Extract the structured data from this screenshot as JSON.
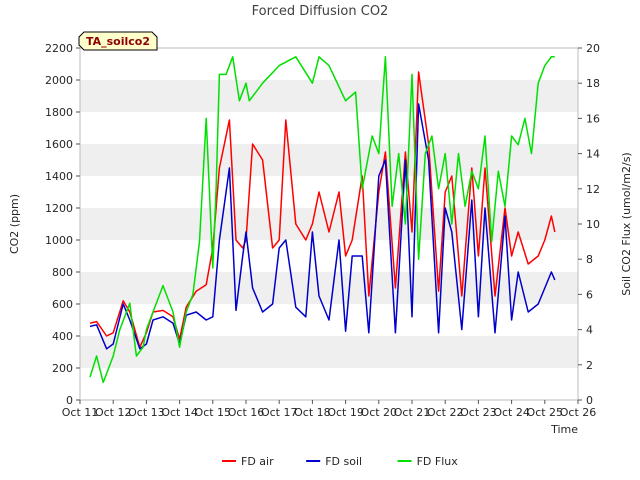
{
  "chart_data": {
    "type": "line",
    "title": "Forced Diffusion CO2",
    "site_label": "TA_soilco2",
    "xlabel": "Time",
    "ylabel_left": "CO2 (ppm)",
    "ylabel_right": "Soil CO2 Flux (umol/m2/s)",
    "x_categories": [
      "Oct 11",
      "Oct 12",
      "Oct 13",
      "Oct 14",
      "Oct 15",
      "Oct 16",
      "Oct 17",
      "Oct 18",
      "Oct 19",
      "Oct 20",
      "Oct 21",
      "Oct 22",
      "Oct 23",
      "Oct 24",
      "Oct 25",
      "Oct 26"
    ],
    "xlim": [
      0,
      15
    ],
    "ylim_left": [
      0,
      2200
    ],
    "yticks_left": [
      0,
      200,
      400,
      600,
      800,
      1000,
      1200,
      1400,
      1600,
      1800,
      2000,
      2200
    ],
    "ylim_right": [
      0,
      20
    ],
    "yticks_right": [
      0,
      2,
      4,
      6,
      8,
      10,
      12,
      14,
      16,
      18,
      20
    ],
    "grid": "horizontal bands",
    "legend_placement": "bottom-center",
    "series": [
      {
        "name": "FD air",
        "axis": "left",
        "color": "#ff0000",
        "x": [
          0.3,
          0.5,
          0.8,
          1.0,
          1.3,
          1.5,
          1.8,
          2.0,
          2.2,
          2.5,
          2.8,
          3.0,
          3.2,
          3.5,
          3.8,
          4.0,
          4.2,
          4.5,
          4.7,
          4.9,
          5.0,
          5.2,
          5.5,
          5.8,
          6.0,
          6.2,
          6.5,
          6.8,
          7.0,
          7.2,
          7.5,
          7.8,
          8.0,
          8.2,
          8.5,
          8.7,
          9.0,
          9.2,
          9.5,
          9.8,
          10.0,
          10.2,
          10.5,
          10.8,
          11.0,
          11.2,
          11.5,
          11.8,
          12.0,
          12.2,
          12.5,
          12.8,
          13.0,
          13.2,
          13.5,
          13.8,
          14.0,
          14.2,
          14.3
        ],
        "values": [
          480,
          490,
          400,
          420,
          620,
          550,
          330,
          420,
          550,
          560,
          520,
          380,
          580,
          680,
          720,
          950,
          1450,
          1750,
          1000,
          950,
          1000,
          1600,
          1500,
          950,
          1000,
          1750,
          1100,
          1000,
          1100,
          1300,
          1050,
          1300,
          900,
          1000,
          1400,
          650,
          1300,
          1550,
          700,
          1550,
          1050,
          2050,
          1600,
          680,
          1300,
          1400,
          650,
          1450,
          900,
          1450,
          650,
          1200,
          900,
          1050,
          850,
          900,
          1000,
          1150,
          1050
        ]
      },
      {
        "name": "FD soil",
        "axis": "left",
        "color": "#0000cc",
        "x": [
          0.3,
          0.5,
          0.8,
          1.0,
          1.3,
          1.5,
          1.8,
          2.0,
          2.2,
          2.5,
          2.8,
          3.0,
          3.2,
          3.5,
          3.8,
          4.0,
          4.2,
          4.5,
          4.7,
          4.9,
          5.0,
          5.2,
          5.5,
          5.8,
          6.0,
          6.2,
          6.5,
          6.8,
          7.0,
          7.2,
          7.5,
          7.8,
          8.0,
          8.2,
          8.5,
          8.7,
          9.0,
          9.2,
          9.5,
          9.8,
          10.0,
          10.2,
          10.5,
          10.8,
          11.0,
          11.2,
          11.5,
          11.8,
          12.0,
          12.2,
          12.5,
          12.8,
          13.0,
          13.2,
          13.5,
          13.8,
          14.0,
          14.2,
          14.3
        ],
        "values": [
          460,
          470,
          320,
          350,
          600,
          500,
          320,
          350,
          500,
          520,
          480,
          350,
          530,
          550,
          500,
          520,
          1000,
          1450,
          560,
          900,
          1050,
          700,
          550,
          600,
          950,
          1000,
          580,
          520,
          1050,
          650,
          500,
          1000,
          430,
          900,
          900,
          420,
          1400,
          1500,
          420,
          1500,
          520,
          1850,
          1500,
          420,
          1200,
          1050,
          440,
          1250,
          520,
          1200,
          420,
          1150,
          500,
          800,
          550,
          600,
          700,
          800,
          750
        ]
      },
      {
        "name": "FD Flux",
        "axis": "right",
        "color": "#00e000",
        "x": [
          0.3,
          0.5,
          0.7,
          0.8,
          1.0,
          1.2,
          1.5,
          1.7,
          1.9,
          2.0,
          2.2,
          2.5,
          2.8,
          3.0,
          3.2,
          3.4,
          3.6,
          3.8,
          4.0,
          4.1,
          4.2,
          4.4,
          4.6,
          4.8,
          5.0,
          5.1,
          5.5,
          6.0,
          6.5,
          7.0,
          7.2,
          7.5,
          8.0,
          8.3,
          8.5,
          8.8,
          9.0,
          9.2,
          9.4,
          9.6,
          9.8,
          10.0,
          10.2,
          10.4,
          10.6,
          10.8,
          11.0,
          11.2,
          11.4,
          11.6,
          11.8,
          12.0,
          12.2,
          12.4,
          12.6,
          12.8,
          13.0,
          13.2,
          13.4,
          13.6,
          13.8,
          14.0,
          14.2,
          14.3
        ],
        "values": [
          1.3,
          2.5,
          1.0,
          1.5,
          2.5,
          4.0,
          5.5,
          2.5,
          3.0,
          4.0,
          5.0,
          6.5,
          5.0,
          3.0,
          5.0,
          6.0,
          9.0,
          16.0,
          7.5,
          12.0,
          18.5,
          18.5,
          19.5,
          17.0,
          18.0,
          17.0,
          18.0,
          19.0,
          19.5,
          18.0,
          19.5,
          19.0,
          17.0,
          17.5,
          12.0,
          15.0,
          14.0,
          19.5,
          11.0,
          14.0,
          10.0,
          18.5,
          8.0,
          14.0,
          15.0,
          12.0,
          14.0,
          10.0,
          14.0,
          11.0,
          13.0,
          12.0,
          15.0,
          9.0,
          13.0,
          11.0,
          15.0,
          14.5,
          16.0,
          14.0,
          18.0,
          19.0,
          19.5,
          19.5
        ]
      }
    ]
  }
}
